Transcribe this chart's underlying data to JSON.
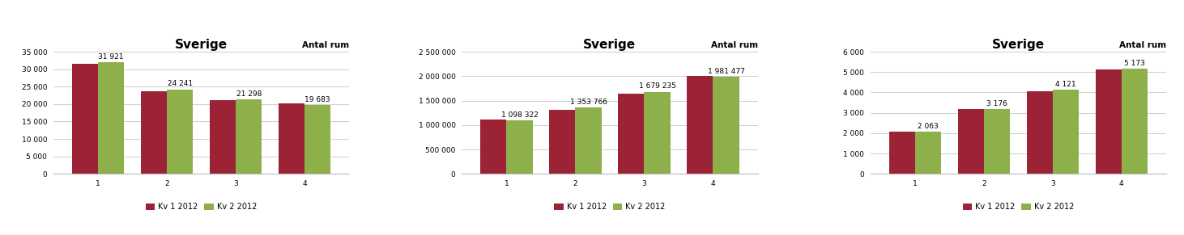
{
  "charts": [
    {
      "title": "Sverige",
      "subtitle": "Antal rum",
      "categories": [
        "1",
        "2",
        "3",
        "4"
      ],
      "kv1": [
        31500,
        23600,
        21100,
        20200
      ],
      "kv2": [
        31921,
        24241,
        21298,
        19683
      ],
      "kv1_labels": [
        "",
        "",
        "",
        ""
      ],
      "kv2_labels": [
        "31 921",
        "24 241",
        "21 298",
        "19 683"
      ],
      "ylim": [
        0,
        35000
      ],
      "yticks": [
        0,
        5000,
        10000,
        15000,
        20000,
        25000,
        30000,
        35000
      ],
      "ytick_labels": [
        "0",
        "5 000",
        "10 000",
        "15 000",
        "20 000",
        "25 000",
        "30 000",
        "35 000"
      ]
    },
    {
      "title": "Sverige",
      "subtitle": "Antal rum",
      "categories": [
        "1",
        "2",
        "3",
        "4"
      ],
      "kv1": [
        1115000,
        1310000,
        1640000,
        2010000
      ],
      "kv2": [
        1098322,
        1353766,
        1679235,
        1981477
      ],
      "kv1_labels": [
        "",
        "",
        "",
        ""
      ],
      "kv2_labels": [
        "1 098 322",
        "1 353 766",
        "1 679 235",
        "1 981 477"
      ],
      "ylim": [
        0,
        2500000
      ],
      "yticks": [
        0,
        500000,
        1000000,
        1500000,
        2000000,
        2500000
      ],
      "ytick_labels": [
        "0",
        "500 000",
        "1 000 000",
        "1 500 000",
        "2 000 000",
        "2 500 000"
      ]
    },
    {
      "title": "Sverige",
      "subtitle": "Antal rum",
      "categories": [
        "1",
        "2",
        "3",
        "4"
      ],
      "kv1": [
        2080,
        3200,
        4060,
        5130
      ],
      "kv2": [
        2063,
        3176,
        4121,
        5173
      ],
      "kv1_labels": [
        "",
        "",
        "",
        ""
      ],
      "kv2_labels": [
        "2 063",
        "3 176",
        "4 121",
        "5 173"
      ],
      "ylim": [
        0,
        6000
      ],
      "yticks": [
        0,
        1000,
        2000,
        3000,
        4000,
        5000,
        6000
      ],
      "ytick_labels": [
        "0",
        "1 000",
        "2 000",
        "3 000",
        "4 000",
        "5 000",
        "6 000"
      ]
    }
  ],
  "color_kv1": "#9B2335",
  "color_kv2": "#8DB04A",
  "legend_kv1": "Kv 1 2012",
  "legend_kv2": "Kv 2 2012",
  "bg_color": "#FFFFFF",
  "grid_color": "#BBBBBB",
  "title_fontsize": 11,
  "subtitle_fontsize": 7.5,
  "label_fontsize": 6.5,
  "tick_fontsize": 6.5,
  "legend_fontsize": 7,
  "bar_width": 0.38
}
